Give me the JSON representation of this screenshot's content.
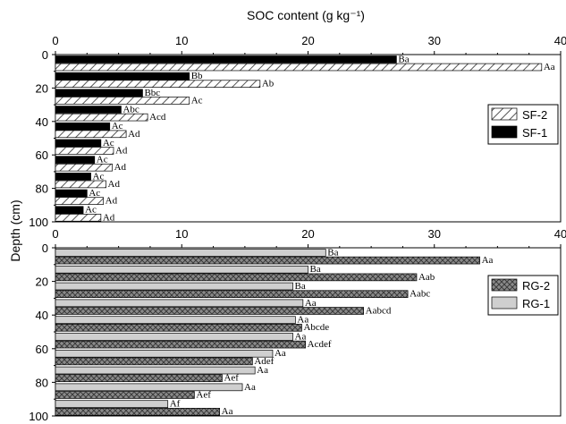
{
  "title": "SOC content (g kg⁻¹)",
  "ylabel": "Depth (cm)",
  "colors": {
    "black": "#000000",
    "grey_fill": "#cfcfcf",
    "hatch_bg": "#ffffff",
    "crosshatch_bg": "#8a8a8a"
  },
  "chart_data": [
    {
      "type": "bar",
      "orientation": "horizontal",
      "xlim": [
        0,
        40
      ],
      "xticks": [
        "0",
        "10",
        "20",
        "30",
        "40"
      ],
      "ylim": [
        0,
        100
      ],
      "yticks": [
        "0",
        "20",
        "40",
        "60",
        "80",
        "100"
      ],
      "ylabel": "Depth (cm)",
      "legend": {
        "position": "right",
        "entries": [
          "SF-2",
          "SF-1"
        ]
      },
      "series": [
        {
          "name": "SF-1",
          "style": "black",
          "labels": [
            "Ba",
            "Bb",
            "Bbc",
            "Abc",
            "Ac",
            "Ac",
            "Ac",
            "Ac",
            "Ac",
            "Ac"
          ],
          "values": [
            27.0,
            10.6,
            6.9,
            5.2,
            4.3,
            3.6,
            3.1,
            2.8,
            2.5,
            2.2
          ]
        },
        {
          "name": "SF-2",
          "style": "hatch",
          "labels": [
            "Aa",
            "Ab",
            "Ac",
            "Acd",
            "Ad",
            "Ad",
            "Ad",
            "Ad",
            "Ad",
            "Ad"
          ],
          "values": [
            38.5,
            16.2,
            10.6,
            7.3,
            5.6,
            4.6,
            4.5,
            4.0,
            3.8,
            3.6
          ]
        }
      ]
    },
    {
      "type": "bar",
      "orientation": "horizontal",
      "xlim": [
        0,
        40
      ],
      "xticks": [
        "0",
        "10",
        "20",
        "30",
        "40"
      ],
      "ylim": [
        0,
        100
      ],
      "yticks": [
        "0",
        "20",
        "40",
        "60",
        "80",
        "100"
      ],
      "ylabel": "Depth (cm)",
      "legend": {
        "position": "right",
        "entries": [
          "RG-2",
          "RG-1"
        ]
      },
      "series": [
        {
          "name": "RG-1",
          "style": "grey",
          "labels": [
            "Ba",
            "Ba",
            "Ba",
            "Aa",
            "Aa",
            "Aa",
            "Aa",
            "Aa",
            "Aa",
            "Af"
          ],
          "values": [
            21.4,
            20.0,
            18.8,
            19.6,
            19.0,
            18.8,
            17.2,
            15.8,
            14.8,
            8.9
          ]
        },
        {
          "name": "RG-2",
          "style": "crosshatch",
          "labels": [
            "Aa",
            "Aab",
            "Aabc",
            "Aabcd",
            "Abcde",
            "Acdef",
            "Adef",
            "Aef",
            "Aef",
            "Aa"
          ],
          "values": [
            33.6,
            28.6,
            27.9,
            24.4,
            19.5,
            19.8,
            15.6,
            13.2,
            11.0,
            13.0
          ]
        }
      ]
    }
  ]
}
